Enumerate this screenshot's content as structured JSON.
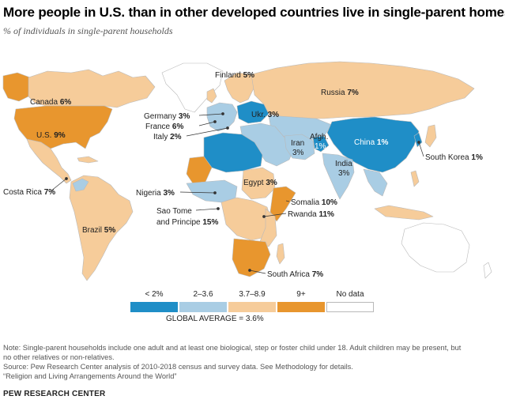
{
  "title": "More people in U.S. than in other developed countries live in single-parent homes",
  "subtitle": "% of individuals in single-parent households",
  "colors": {
    "lt2": "#1f8ec7",
    "c2to36": "#a9cde4",
    "c37to89": "#f6cc9a",
    "c9plus": "#e8962e",
    "nodata": "#ffffff",
    "water": "#ffffff",
    "border": "#b9b9b9"
  },
  "labels": {
    "finland": {
      "name": "Finland",
      "value": "5%"
    },
    "russia": {
      "name": "Russia",
      "value": "7%"
    },
    "canada": {
      "name": "Canada",
      "value": "6%"
    },
    "us": {
      "name": "U.S.",
      "value": "9%"
    },
    "germany": {
      "name": "Germany",
      "value": "3%"
    },
    "france": {
      "name": "France",
      "value": "6%"
    },
    "italy": {
      "name": "Italy",
      "value": "2%"
    },
    "ukraine": {
      "name": "Ukr.",
      "value": "3%"
    },
    "iran": {
      "name": "Iran",
      "value": "3%"
    },
    "afghanistan": {
      "name": "Afgh.",
      "value": "1%"
    },
    "china": {
      "name": "China",
      "value": "1%"
    },
    "egypt": {
      "name": "Egypt",
      "value": "3%"
    },
    "india": {
      "name": "India",
      "value": "3%"
    },
    "south_korea": {
      "name": "South Korea",
      "value": "1%"
    },
    "costa_rica": {
      "name": "Costa Rica",
      "value": "7%"
    },
    "nigeria": {
      "name": "Nigeria",
      "value": "3%"
    },
    "somalia": {
      "name": "Somalia",
      "value": "10%"
    },
    "sao_tome_line1": "Sao Tome",
    "sao_tome_line2": {
      "name": "and Principe",
      "value": "15%"
    },
    "rwanda": {
      "name": "Rwanda",
      "value": "11%"
    },
    "brazil": {
      "name": "Brazil",
      "value": "5%"
    },
    "south_africa": {
      "name": "South Africa",
      "value": "7%"
    }
  },
  "legend": [
    {
      "label": "< 2%",
      "color": "#1f8ec7"
    },
    {
      "label": "2–3.6",
      "color": "#a9cde4"
    },
    {
      "label": "3.7–8.9",
      "color": "#f6cc9a"
    },
    {
      "label": "9+",
      "color": "#e8962e"
    },
    {
      "label": "No data",
      "color": "#ffffff"
    }
  ],
  "global_average": "GLOBAL AVERAGE = 3.6%",
  "notes": [
    "Note: Single-parent households include one adult and at least one biological, step or foster child under 18. Adult children may be present, but",
    "no other relatives or non-relatives.",
    "Source: Pew Research Center analysis of 2010-2018 census and survey data. See Methodology for details.",
    "“Religion and Living Arrangements Around the World”"
  ],
  "organization": "PEW RESEARCH CENTER"
}
